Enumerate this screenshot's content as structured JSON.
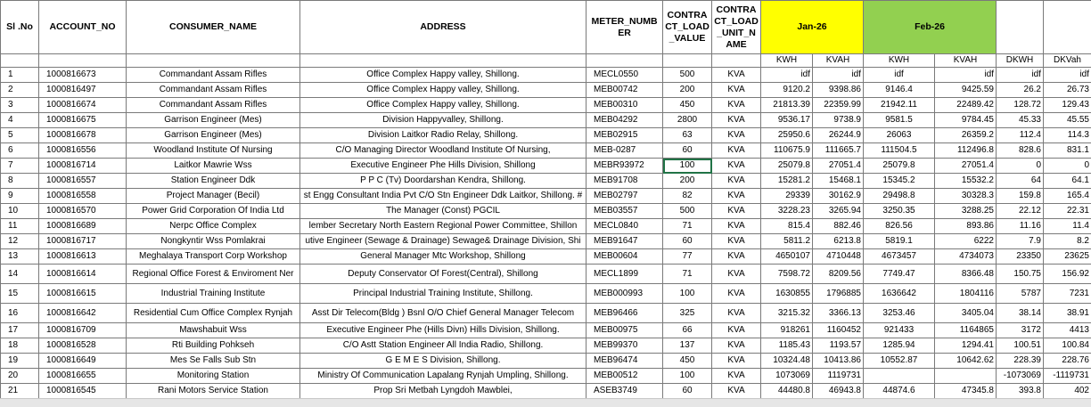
{
  "header": {
    "columns": [
      "Sl .No",
      "ACCOUNT_NO",
      "CONSUMER_NAME",
      "ADDRESS",
      "METER_NUMBER",
      "CONTRACT_LOAD_VALUE",
      "CONTRACT_LOAD_UNIT_NAME"
    ],
    "months": [
      "Jan-26",
      "Feb-26"
    ],
    "subcolumns": [
      "KWH",
      "KVAH",
      "KWH",
      "KVAH",
      "DKWH",
      "DKVah"
    ]
  },
  "table": {
    "rows": [
      [
        "1",
        "1000816673",
        "Commandant Assam Rifles",
        "Office Complex Happy valley, Shillong.",
        "MECL0550",
        "500",
        "KVA",
        "idf",
        "idf",
        "idf",
        "idf",
        "idf",
        "idf"
      ],
      [
        "2",
        "1000816497",
        "Commandant Assam Rifles",
        "Office Complex Happy valley, Shillong.",
        "MEB00742",
        "200",
        "KVA",
        "9120.2",
        "9398.86",
        "9146.4",
        "9425.59",
        "26.2",
        "26.73"
      ],
      [
        "3",
        "1000816674",
        "Commandant Assam Rifles",
        "Office Complex Happy valley, Shillong.",
        "MEB00310",
        "450",
        "KVA",
        "21813.39",
        "22359.99",
        "21942.11",
        "22489.42",
        "128.72",
        "129.43"
      ],
      [
        "4",
        "1000816675",
        "Garrison Engineer (Mes)",
        "Division Happyvalley, Shillong.",
        "MEB04292",
        "2800",
        "KVA",
        "9536.17",
        "9738.9",
        "9581.5",
        "9784.45",
        "45.33",
        "45.55"
      ],
      [
        "5",
        "1000816678",
        "Garrison Engineer (Mes)",
        "Division Laitkor Radio Relay, Shillong.",
        "MEB02915",
        "63",
        "KVA",
        "25950.6",
        "26244.9",
        "26063",
        "26359.2",
        "112.4",
        "114.3"
      ],
      [
        "6",
        "1000816556",
        "Woodland Institute Of Nursing",
        "C/O Managing Director Woodland Institute Of Nursing,",
        "MEB-0287",
        "60",
        "KVA",
        "110675.9",
        "111665.7",
        "111504.5",
        "112496.8",
        "828.6",
        "831.1"
      ],
      [
        "7",
        "1000816714",
        "Laitkor Mawrie Wss",
        "Executive Engineer Phe Hills Division, Shillong",
        "MEBR93972",
        "100",
        "KVA",
        "25079.8",
        "27051.4",
        "25079.8",
        "27051.4",
        "0",
        "0"
      ],
      [
        "8",
        "1000816557",
        "Station Engineer Ddk",
        "P P C (Tv) Doordarshan Kendra, Shillong.",
        "MEB91708",
        "200",
        "KVA",
        "15281.2",
        "15468.1",
        "15345.2",
        "15532.2",
        "64",
        "64.1"
      ],
      [
        "9",
        "1000816558",
        "Project Manager (Becil)",
        "st Engg Consultant India Pvt C/O Stn Engineer Ddk Laitkor, Shillong. #",
        "MEB02797",
        "82",
        "KVA",
        "29339",
        "30162.9",
        "29498.8",
        "30328.3",
        "159.8",
        "165.4"
      ],
      [
        "10",
        "1000816570",
        "Power Grid Corporation Of India Ltd",
        "The Manager (Const) PGCIL",
        "MEB03557",
        "500",
        "KVA",
        "3228.23",
        "3265.94",
        "3250.35",
        "3288.25",
        "22.12",
        "22.31"
      ],
      [
        "11",
        "1000816689",
        "Nerpc Office Complex",
        "lember Secretary North Eastern Regional Power Committee, Shillon",
        "MECL0840",
        "71",
        "KVA",
        "815.4",
        "882.46",
        "826.56",
        "893.86",
        "11.16",
        "11.4"
      ],
      [
        "12",
        "1000816717",
        "Nongkyntir Wss Pomlakrai",
        "utive Engineer (Sewage & Drainage) Sewage& Drainage Division, Shi",
        "MEB91647",
        "60",
        "KVA",
        "5811.2",
        "6213.8",
        "5819.1",
        "6222",
        "7.9",
        "8.2"
      ],
      [
        "13",
        "1000816613",
        "Meghalaya Transport Corp Workshop",
        "General Manager Mtc Workshop, Shillong",
        "MEB00604",
        "77",
        "KVA",
        "4650107",
        "4710448",
        "4673457",
        "4734073",
        "23350",
        "23625"
      ],
      [
        "14",
        "1000816614",
        "Regional Office Forest & Enviroment Ner",
        "Deputy Conservator Of Forest(Central), Shillong",
        "MECL1899",
        "71",
        "KVA",
        "7598.72",
        "8209.56",
        "7749.47",
        "8366.48",
        "150.75",
        "156.92"
      ],
      [
        "15",
        "1000816615",
        "Industrial Training Institute",
        "Principal Industrial Training Institute, Shillong.",
        "MEB000993",
        "100",
        "KVA",
        "1630855",
        "1796885",
        "1636642",
        "1804116",
        "5787",
        "7231"
      ],
      [
        "16",
        "1000816642",
        "Residential Cum Office Complex Rynjah",
        "Asst Dir Telecom(Bldg ) Bsnl O/O Chief General Manager Telecom",
        "MEB96466",
        "325",
        "KVA",
        "3215.32",
        "3366.13",
        "3253.46",
        "3405.04",
        "38.14",
        "38.91"
      ],
      [
        "17",
        "1000816709",
        "Mawshabuit Wss",
        "Executive Engineer Phe (Hills Divn) Hills Division, Shillong.",
        "MEB00975",
        "66",
        "KVA",
        "918261",
        "1160452",
        "921433",
        "1164865",
        "3172",
        "4413"
      ],
      [
        "18",
        "1000816528",
        "Rti Building Pohkseh",
        "C/O Astt Station Engineer All India Radio, Shillong.",
        "MEB99370",
        "137",
        "KVA",
        "1185.43",
        "1193.57",
        "1285.94",
        "1294.41",
        "100.51",
        "100.84"
      ],
      [
        "19",
        "1000816649",
        "Mes Se Falls Sub Stn",
        "G E M E S Division, Shillong.",
        "MEB96474",
        "450",
        "KVA",
        "10324.48",
        "10413.86",
        "10552.87",
        "10642.62",
        "228.39",
        "228.76"
      ],
      [
        "20",
        "1000816655",
        "Monitoring Station",
        "Ministry Of Communication Lapalang Rynjah Umpling, Shillong.",
        "MEB00512",
        "100",
        "KVA",
        "1073069",
        "1119731",
        null,
        null,
        "-1073069",
        "-1119731"
      ],
      [
        "21",
        "1000816545",
        "Rani Motors Service Station",
        "Prop Sri Metbah Lyngdoh Mawblei,",
        "ASEB3749",
        "60",
        "KVA",
        "44480.8",
        "46943.8",
        "44874.6",
        "47345.8",
        "393.8",
        "402"
      ]
    ]
  }
}
